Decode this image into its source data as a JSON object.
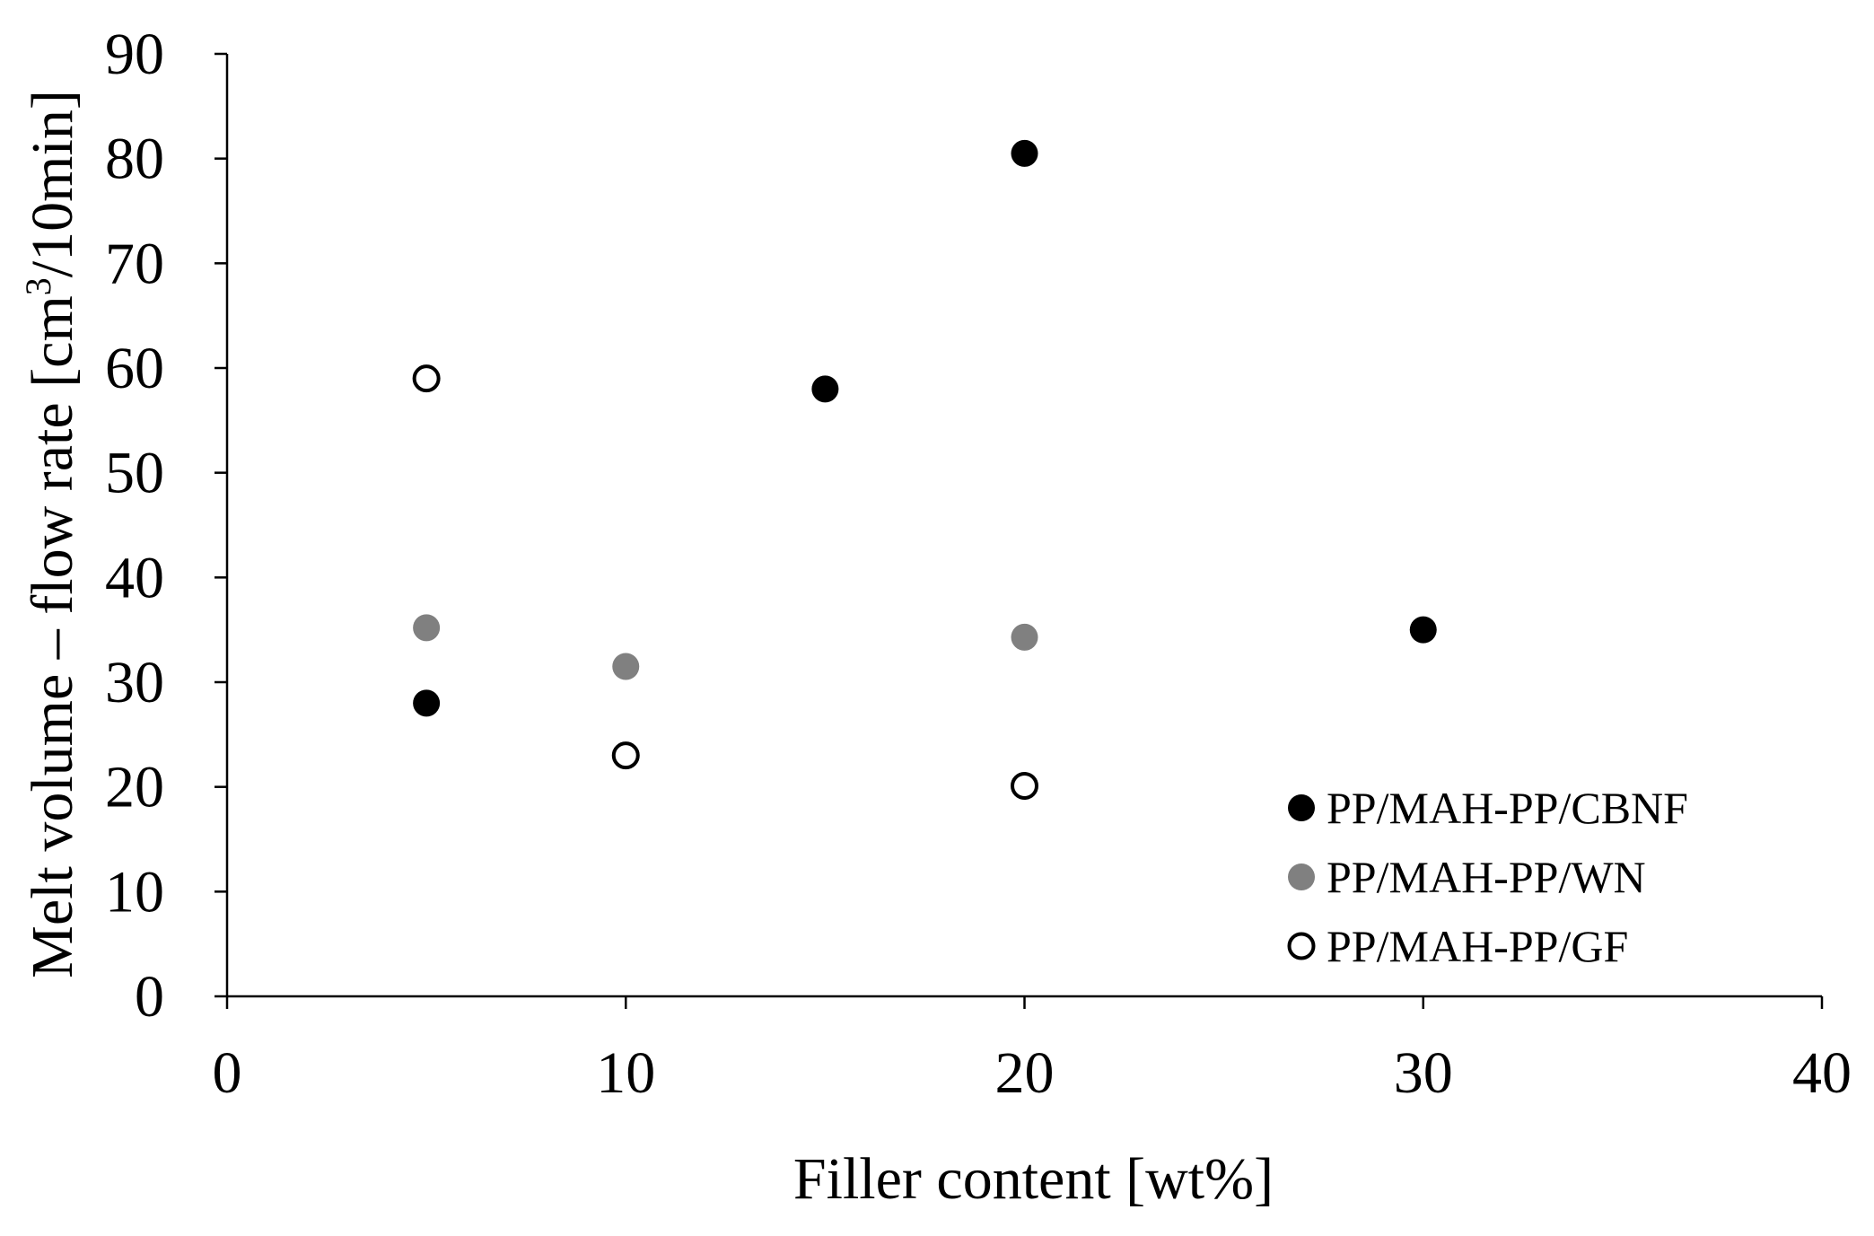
{
  "chart_data": {
    "type": "scatter",
    "xlabel": "Filler content [wt%]",
    "ylabel_prefix": "Melt volume – flow rate [cm",
    "ylabel_sup": "3",
    "ylabel_suffix": "/10min]",
    "xlim": [
      0,
      40
    ],
    "ylim": [
      0,
      90
    ],
    "x_ticks": [
      0,
      10,
      20,
      30,
      40
    ],
    "y_ticks": [
      0,
      10,
      20,
      30,
      40,
      50,
      60,
      70,
      80,
      90
    ],
    "grid": false,
    "legend_position": "bottom-right",
    "series": [
      {
        "name": "PP/MAH-PP/CBNF",
        "marker": "filled",
        "color": "#000000",
        "points": [
          [
            5,
            28
          ],
          [
            15,
            58
          ],
          [
            20,
            80.5
          ],
          [
            30,
            35
          ]
        ]
      },
      {
        "name": "PP/MAH-PP/WN",
        "marker": "filled",
        "color": "#808080",
        "points": [
          [
            5,
            35.2
          ],
          [
            10,
            31.5
          ],
          [
            20,
            34.3
          ]
        ]
      },
      {
        "name": "PP/MAH-PP/GF",
        "marker": "open",
        "color": "#000000",
        "points": [
          [
            5,
            59
          ],
          [
            10,
            23
          ],
          [
            20,
            20.1
          ]
        ]
      }
    ]
  }
}
